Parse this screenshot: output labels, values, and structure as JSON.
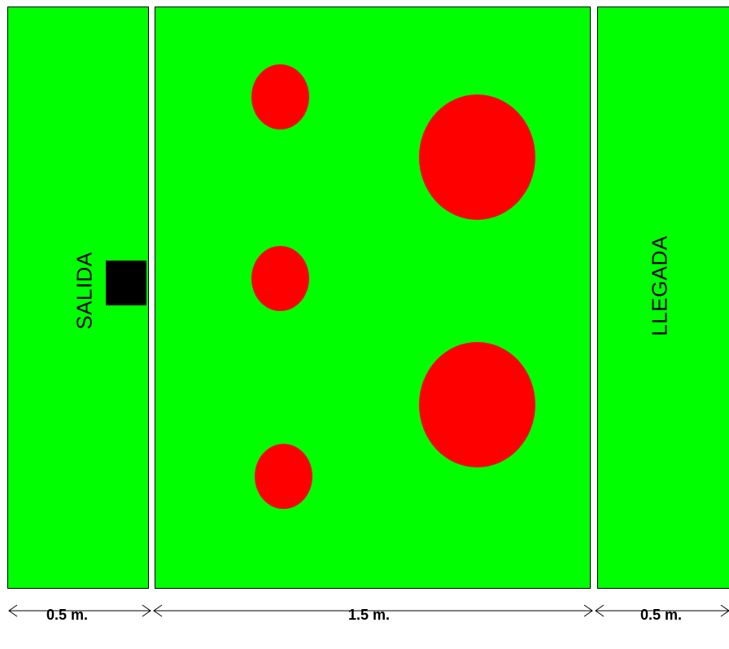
{
  "colors": {
    "field": "#00ff00",
    "obstacle": "#ff0000",
    "robot": "#000000",
    "divider": "#ffffff"
  },
  "labels": {
    "start": "SALIDA",
    "finish": "LLEGADA"
  },
  "dimensions": {
    "start_zone": "0.5 m.",
    "obstacle_zone": "1.5 m.",
    "finish_zone": "0.5 m."
  },
  "obstacles": {
    "small_count": 3,
    "large_count": 2
  }
}
